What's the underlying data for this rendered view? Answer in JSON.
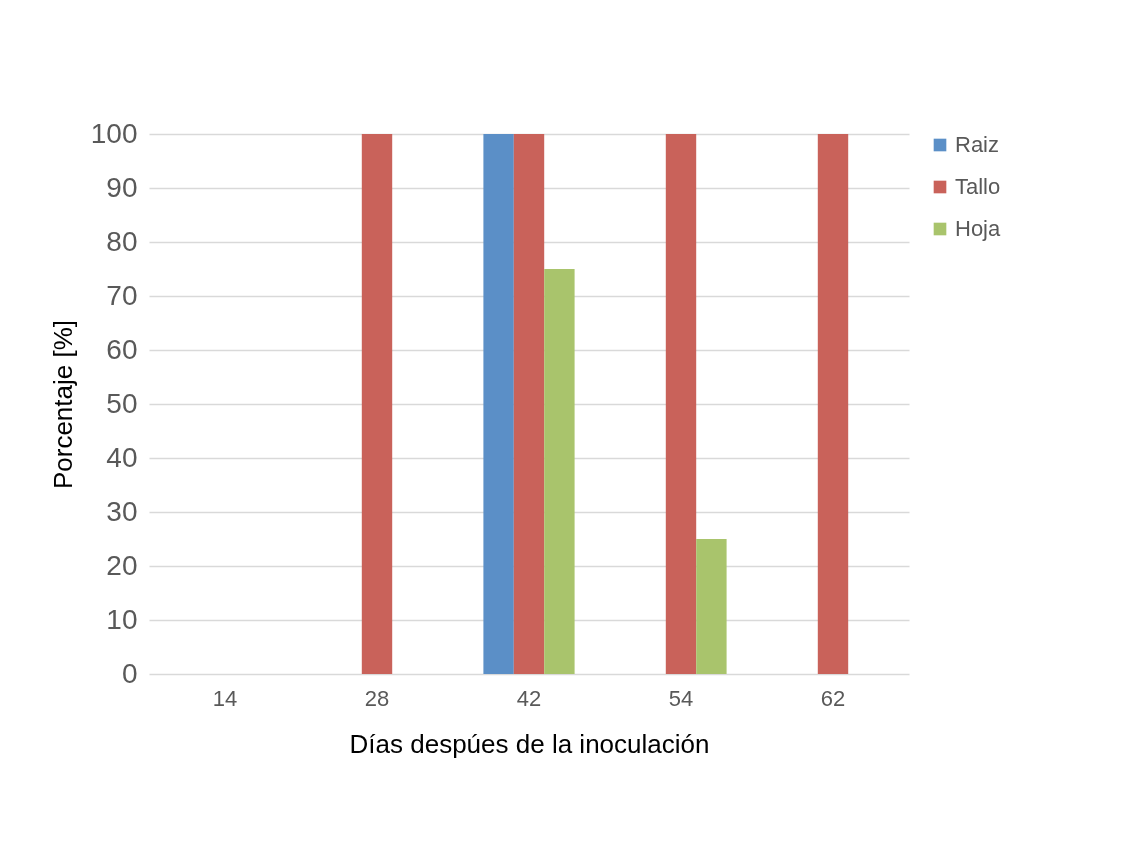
{
  "chart_data": {
    "type": "bar",
    "xlabel": "Días despúes de la inoculación",
    "ylabel": "Porcentaje [%]",
    "categories": [
      "14",
      "28",
      "42",
      "54",
      "62"
    ],
    "series": [
      {
        "name": "Raiz",
        "color": "#5b8fc7",
        "values": [
          0,
          0,
          100,
          0,
          0
        ]
      },
      {
        "name": "Tallo",
        "color": "#c9625a",
        "values": [
          0,
          100,
          100,
          100,
          100
        ]
      },
      {
        "name": "Hoja",
        "color": "#a9c46c",
        "values": [
          0,
          0,
          75,
          25,
          0
        ]
      }
    ],
    "ylim": [
      0,
      100
    ],
    "yticks": [
      0,
      10,
      20,
      30,
      40,
      50,
      60,
      70,
      80,
      90,
      100
    ],
    "grid": "y",
    "legend": "right"
  }
}
